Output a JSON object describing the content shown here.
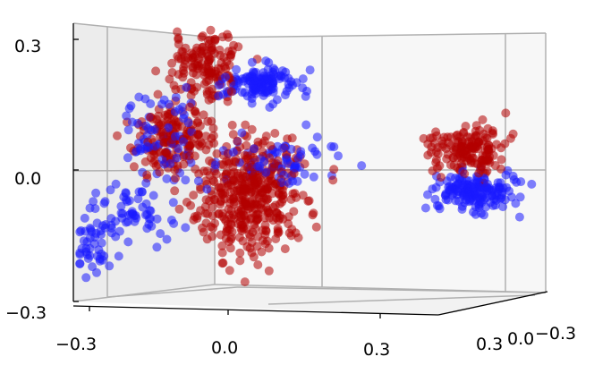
{
  "chart_data": {
    "type": "scatter",
    "projection": "3d",
    "title": "",
    "xlabel": "",
    "ylabel": "",
    "zlabel": "",
    "x_ticks": [
      "−0.3",
      "0.0",
      "0.3"
    ],
    "y_ticks": [
      "0.3",
      "0.0",
      "−0.3"
    ],
    "z_ticks": [
      "0.3",
      "0.0",
      "−0.3"
    ],
    "xlim": [
      -0.3,
      0.3
    ],
    "ylim": [
      -0.3,
      0.3
    ],
    "zlim": [
      -0.3,
      0.3
    ],
    "grid": true,
    "legend": "none",
    "colors": {
      "red_series": "#b30000",
      "blue_series": "#1a1aff",
      "pane": "#f2f2f2",
      "grid": "#b0b0b0"
    },
    "series": [
      {
        "color": "red",
        "clusters": [
          {
            "center": [
              -0.05,
              0.0,
              0.24
            ],
            "spread": [
              0.04,
              0.03,
              0.045
            ],
            "count": 150
          },
          {
            "center": [
              -0.12,
              0.0,
              0.07
            ],
            "spread": [
              0.04,
              0.03,
              0.035
            ],
            "count": 160
          },
          {
            "center": [
              0.05,
              0.0,
              -0.02
            ],
            "spread": [
              0.06,
              0.03,
              0.05
            ],
            "count": 220
          },
          {
            "center": [
              0.04,
              0.0,
              -0.1
            ],
            "spread": [
              0.06,
              0.03,
              0.05
            ],
            "count": 200
          },
          {
            "center": [
              0.52,
              0.0,
              0.05
            ],
            "spread": [
              0.04,
              0.03,
              0.025
            ],
            "count": 160
          }
        ]
      },
      {
        "color": "blue",
        "clusters": [
          {
            "center": [
              0.07,
              0.0,
              0.2
            ],
            "spread": [
              0.04,
              0.03,
              0.02
            ],
            "count": 130
          },
          {
            "center": [
              -0.33,
              0.0,
              -0.18
            ],
            "spread": [
              0.04,
              0.03,
              0.03
            ],
            "count": 70
          },
          {
            "center": [
              -0.2,
              0.0,
              -0.1
            ],
            "spread": [
              0.05,
              0.03,
              0.04
            ],
            "count": 70
          },
          {
            "center": [
              -0.15,
              0.0,
              0.08
            ],
            "spread": [
              0.04,
              0.03,
              0.05
            ],
            "count": 60
          },
          {
            "center": [
              0.53,
              0.0,
              -0.05
            ],
            "spread": [
              0.05,
              0.03,
              0.02
            ],
            "count": 170
          },
          {
            "center": [
              0.1,
              0.0,
              0.02
            ],
            "spread": [
              0.08,
              0.03,
              0.03
            ],
            "count": 80
          }
        ]
      }
    ]
  }
}
